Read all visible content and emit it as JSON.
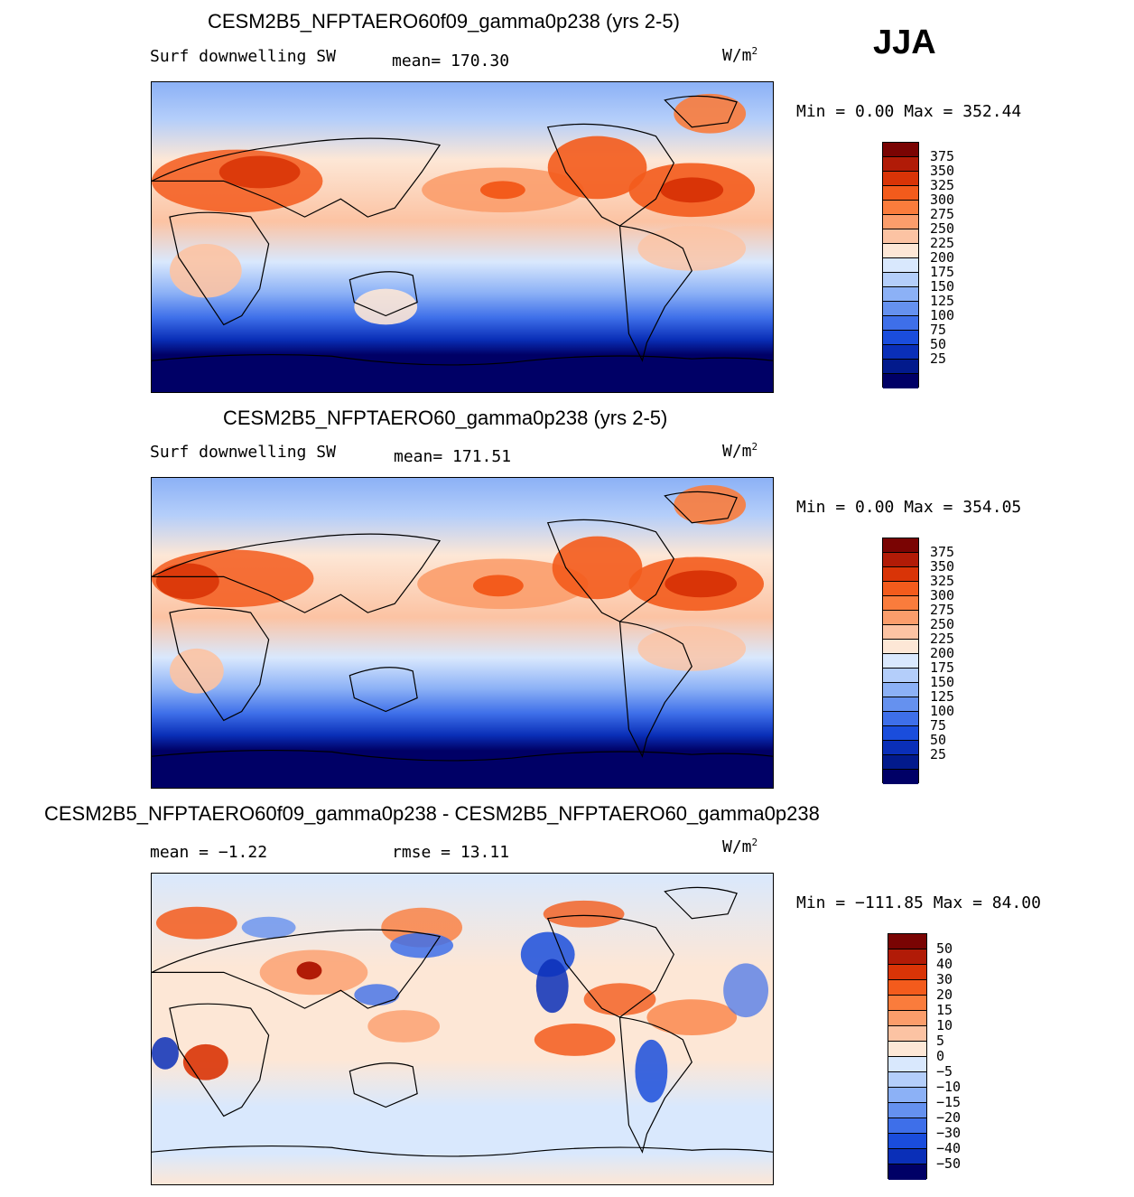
{
  "season": "JJA",
  "units_base": "W/m",
  "units_exp": "2",
  "panels": [
    {
      "title": "CESM2B5_NFPTAERO60f09_gamma0p238 (yrs 2-5)",
      "variable": "Surf downwelling SW",
      "stat1_label": "mean=",
      "stat1_value": "170.30",
      "minmax": "Min =    0.00 Max = 352.44",
      "colorbar_labels": [
        "375",
        "350",
        "325",
        "300",
        "275",
        "250",
        "225",
        "200",
        "175",
        "150",
        "125",
        "100",
        "75",
        "50",
        "25"
      ]
    },
    {
      "title": "CESM2B5_NFPTAERO60_gamma0p238 (yrs 2-5)",
      "variable": "Surf downwelling SW",
      "stat1_label": "mean=",
      "stat1_value": "171.51",
      "minmax": "Min =    0.00 Max = 354.05",
      "colorbar_labels": [
        "375",
        "350",
        "325",
        "300",
        "275",
        "250",
        "225",
        "200",
        "175",
        "150",
        "125",
        "100",
        "75",
        "50",
        "25"
      ]
    },
    {
      "title": "CESM2B5_NFPTAERO60f09_gamma0p238 - CESM2B5_NFPTAERO60_gamma0p238",
      "stat1_label": "mean =",
      "stat1_value": "−1.22",
      "stat2_label": "rmse =",
      "stat2_value": "13.11",
      "minmax": "Min = −111.85 Max =   84.00",
      "colorbar_labels": [
        "50",
        "40",
        "30",
        "20",
        "15",
        "10",
        "5",
        "0",
        "−5",
        "−10",
        "−15",
        "−20",
        "−30",
        "−40",
        "−50"
      ]
    }
  ],
  "colors": {
    "abs_scale": [
      "#7a0403",
      "#b11b07",
      "#d93407",
      "#f35b1c",
      "#fa7c3c",
      "#fb9d6b",
      "#fcc3a3",
      "#fde7d6",
      "#d9e8fd",
      "#b4cefa",
      "#8cb1f6",
      "#6591ef",
      "#3e6fe9",
      "#1a4ddc",
      "#0a2fb8",
      "#021a8c",
      "#000066"
    ],
    "diff_scale": [
      "#7a0403",
      "#b11b07",
      "#d93407",
      "#f35b1c",
      "#fa7c3c",
      "#fb9d6b",
      "#fcc3a3",
      "#fde7d6",
      "#d9e8fd",
      "#b4cefa",
      "#8cb1f6",
      "#6591ef",
      "#3e6fe9",
      "#1a4ddc",
      "#0a2fb8",
      "#000066"
    ]
  }
}
